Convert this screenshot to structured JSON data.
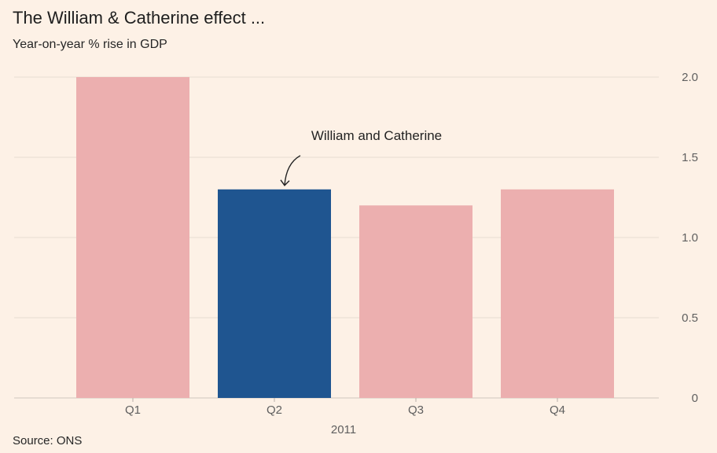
{
  "title": "The William & Catherine effect ...",
  "subtitle": "Year-on-year % rise in GDP",
  "source": "Source: ONS",
  "chart_data": {
    "type": "bar",
    "categories": [
      "Q1",
      "Q2",
      "Q3",
      "Q4"
    ],
    "values": [
      2.0,
      1.3,
      1.2,
      1.3
    ],
    "highlight_index": 1,
    "title": "The William & Catherine effect ...",
    "ylabel": "Year-on-year % rise in GDP",
    "xlabel": "2011",
    "ylim": [
      0,
      2.0
    ],
    "yticks": [
      {
        "value": 0,
        "label": "0"
      },
      {
        "value": 0.5,
        "label": "0.5"
      },
      {
        "value": 1.0,
        "label": "1.0"
      },
      {
        "value": 1.5,
        "label": "1.5"
      },
      {
        "value": 2.0,
        "label": "2.0"
      }
    ],
    "grid": true,
    "annotation": {
      "text": "William and Catherine",
      "category": "Q2"
    }
  },
  "colors": {
    "bar": "#ecafaf",
    "highlight": "#1f5590",
    "grid": "#e8ddd3",
    "axis": "#5f5f5f",
    "background": "#fdf1e6"
  }
}
